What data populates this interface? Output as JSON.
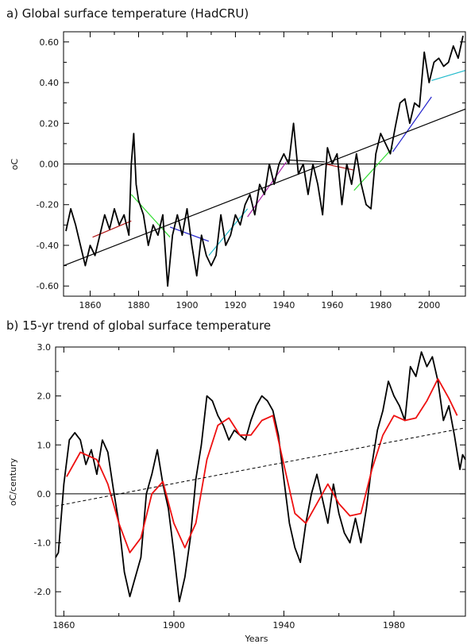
{
  "chart_data": [
    {
      "type": "line",
      "title": "a) Global surface temperature (HadCRU)",
      "xlabel": "",
      "ylabel": "oC",
      "xlim": [
        1849,
        2015
      ],
      "ylim": [
        -0.65,
        0.65
      ],
      "xticks": [
        1860,
        1880,
        1900,
        1920,
        1940,
        1960,
        1980,
        2000
      ],
      "yticks": [
        -0.6,
        -0.4,
        -0.2,
        0.0,
        0.2,
        0.4,
        0.6
      ],
      "ytick_labels": [
        "-0.60",
        "-0.40",
        "-0.20",
        "0.00",
        "0.20",
        "0.40",
        "0.60"
      ],
      "grid": false,
      "zero_line": true,
      "series": [
        {
          "color": "#000000",
          "x": [
            1850,
            1852,
            1854,
            1856,
            1858,
            1860,
            1862,
            1864,
            1866,
            1868,
            1870,
            1872,
            1874,
            1876,
            1877,
            1878,
            1879,
            1880,
            1882,
            1884,
            1886,
            1888,
            1890,
            1892,
            1894,
            1896,
            1898,
            1900,
            1902,
            1904,
            1906,
            1908,
            1910,
            1912,
            1914,
            1916,
            1918,
            1920,
            1922,
            1924,
            1926,
            1928,
            1930,
            1932,
            1934,
            1936,
            1938,
            1940,
            1942,
            1944,
            1946,
            1948,
            1950,
            1952,
            1954,
            1956,
            1958,
            1960,
            1962,
            1964,
            1966,
            1968,
            1970,
            1972,
            1974,
            1976,
            1978,
            1980,
            1982,
            1984,
            1986,
            1988,
            1990,
            1992,
            1994,
            1996,
            1998,
            2000,
            2002,
            2004,
            2006,
            2008,
            2010,
            2012,
            2014
          ],
          "y": [
            -0.33,
            -0.22,
            -0.3,
            -0.4,
            -0.5,
            -0.4,
            -0.45,
            -0.35,
            -0.25,
            -0.32,
            -0.22,
            -0.3,
            -0.25,
            -0.35,
            0.0,
            0.15,
            -0.1,
            -0.18,
            -0.25,
            -0.4,
            -0.3,
            -0.35,
            -0.25,
            -0.6,
            -0.35,
            -0.25,
            -0.35,
            -0.22,
            -0.4,
            -0.55,
            -0.35,
            -0.45,
            -0.5,
            -0.45,
            -0.25,
            -0.4,
            -0.35,
            -0.25,
            -0.3,
            -0.2,
            -0.15,
            -0.25,
            -0.1,
            -0.15,
            0.0,
            -0.1,
            0.0,
            0.05,
            0.0,
            0.2,
            -0.05,
            0.0,
            -0.15,
            0.0,
            -0.1,
            -0.25,
            0.08,
            0.0,
            0.05,
            -0.2,
            0.0,
            -0.1,
            0.05,
            -0.1,
            -0.2,
            -0.22,
            0.05,
            0.15,
            0.1,
            0.05,
            0.18,
            0.3,
            0.32,
            0.2,
            0.3,
            0.28,
            0.55,
            0.4,
            0.5,
            0.52,
            0.48,
            0.5,
            0.58,
            0.52,
            0.63
          ]
        }
      ],
      "trend_segments": [
        {
          "x": [
            1861,
            1877
          ],
          "y": [
            -0.36,
            -0.28
          ],
          "color": "#b01818"
        },
        {
          "x": [
            1877,
            1893
          ],
          "y": [
            -0.15,
            -0.36
          ],
          "color": "#33dd33"
        },
        {
          "x": [
            1893,
            1909
          ],
          "y": [
            -0.31,
            -0.38
          ],
          "color": "#2222cc"
        },
        {
          "x": [
            1909,
            1925
          ],
          "y": [
            -0.45,
            -0.22
          ],
          "color": "#22bbcc"
        },
        {
          "x": [
            1925,
            1941
          ],
          "y": [
            -0.26,
            0.01
          ],
          "color": "#aa22aa"
        },
        {
          "x": [
            1941,
            1957
          ],
          "y": [
            0.02,
            0.01
          ],
          "color": "#111111"
        },
        {
          "x": [
            1957,
            1969
          ],
          "y": [
            0.0,
            -0.03
          ],
          "color": "#b01818"
        },
        {
          "x": [
            1969,
            1985
          ],
          "y": [
            -0.13,
            0.08
          ],
          "color": "#33dd33"
        },
        {
          "x": [
            1985,
            2001
          ],
          "y": [
            0.06,
            0.33
          ],
          "color": "#2222cc"
        },
        {
          "x": [
            2001,
            2015
          ],
          "y": [
            0.41,
            0.46
          ],
          "color": "#22bbcc"
        },
        {
          "x": [
            1849,
            2015
          ],
          "y": [
            -0.5,
            0.27
          ],
          "color": "#000000"
        }
      ]
    },
    {
      "type": "line",
      "title": "b) 15-yr trend of global surface temperature",
      "xlabel": "Years",
      "ylabel": "oC/century",
      "xlim": [
        1857,
        2006
      ],
      "ylim": [
        -2.5,
        3.0
      ],
      "xticks": [
        1860,
        1900,
        1940,
        1980
      ],
      "yticks": [
        -2.0,
        -1.0,
        0.0,
        1.0,
        2.0,
        3.0
      ],
      "ytick_labels": [
        "-2.0",
        "-1.0",
        "0.0",
        "1.0",
        "2.0",
        "3.0"
      ],
      "grid": false,
      "zero_line": true,
      "series": [
        {
          "color": "#000000",
          "x": [
            1857,
            1858,
            1860,
            1862,
            1864,
            1866,
            1868,
            1870,
            1872,
            1874,
            1876,
            1878,
            1880,
            1882,
            1884,
            1886,
            1888,
            1890,
            1892,
            1894,
            1896,
            1898,
            1900,
            1902,
            1904,
            1906,
            1908,
            1910,
            1912,
            1914,
            1916,
            1918,
            1920,
            1922,
            1924,
            1926,
            1928,
            1930,
            1932,
            1934,
            1936,
            1938,
            1940,
            1942,
            1944,
            1946,
            1948,
            1950,
            1952,
            1954,
            1956,
            1958,
            1960,
            1962,
            1964,
            1966,
            1968,
            1970,
            1972,
            1974,
            1976,
            1978,
            1980,
            1982,
            1984,
            1986,
            1988,
            1990,
            1992,
            1994,
            1996,
            1998,
            2000,
            2002,
            2004,
            2005,
            2006
          ],
          "y": [
            -1.3,
            -1.2,
            0.2,
            1.1,
            1.25,
            1.1,
            0.6,
            0.9,
            0.4,
            1.1,
            0.85,
            0.1,
            -0.6,
            -1.6,
            -2.1,
            -1.7,
            -1.3,
            0.0,
            0.4,
            0.9,
            0.2,
            -0.3,
            -1.2,
            -2.2,
            -1.7,
            -0.9,
            0.3,
            1.0,
            2.0,
            1.9,
            1.6,
            1.4,
            1.1,
            1.3,
            1.2,
            1.1,
            1.5,
            1.8,
            2.0,
            1.9,
            1.7,
            1.2,
            0.3,
            -0.6,
            -1.1,
            -1.4,
            -0.6,
            0.0,
            0.4,
            -0.1,
            -0.6,
            0.2,
            -0.4,
            -0.8,
            -1.0,
            -0.5,
            -1.0,
            -0.3,
            0.6,
            1.3,
            1.7,
            2.3,
            2.0,
            1.8,
            1.5,
            2.6,
            2.4,
            2.9,
            2.6,
            2.8,
            2.3,
            1.5,
            1.8,
            1.2,
            0.5,
            0.8,
            0.7
          ]
        },
        {
          "color": "#ee1111",
          "x": [
            1861,
            1866,
            1872,
            1876,
            1880,
            1884,
            1888,
            1892,
            1896,
            1900,
            1904,
            1908,
            1912,
            1916,
            1920,
            1924,
            1928,
            1932,
            1936,
            1940,
            1944,
            1948,
            1952,
            1956,
            1960,
            1964,
            1968,
            1972,
            1976,
            1980,
            1984,
            1988,
            1992,
            1996,
            2000,
            2003
          ],
          "y": [
            0.35,
            0.85,
            0.7,
            0.2,
            -0.6,
            -1.2,
            -0.9,
            0.0,
            0.25,
            -0.6,
            -1.1,
            -0.6,
            0.7,
            1.4,
            1.55,
            1.2,
            1.2,
            1.5,
            1.6,
            0.6,
            -0.4,
            -0.6,
            -0.2,
            0.2,
            -0.2,
            -0.45,
            -0.4,
            0.5,
            1.2,
            1.6,
            1.5,
            1.55,
            1.9,
            2.35,
            1.95,
            1.6
          ]
        }
      ],
      "trend_line": {
        "x": [
          1857,
          2006
        ],
        "y": [
          -0.25,
          1.35
        ],
        "color": "#000000",
        "dash": "dashed"
      }
    }
  ]
}
